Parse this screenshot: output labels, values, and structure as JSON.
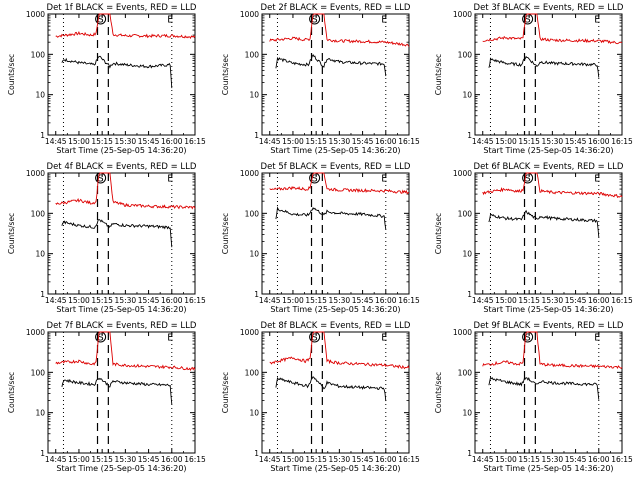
{
  "figure": {
    "xlabel": "Start Time (25-Sep-05 14:36:20)",
    "ylabel": "Counts/sec",
    "colors": {
      "events": "#000000",
      "lld": "#dd0000",
      "axis": "#000000"
    }
  },
  "chart_data": [
    {
      "type": "line",
      "title": "Det 1f BLACK = Events, RED = LLD",
      "xlabel": "Start Time (25-Sep-05 14:36:20)",
      "ylabel": "Counts/sec",
      "xlim": [
        "14:40",
        "16:15"
      ],
      "ylim": [
        1,
        1000
      ],
      "yscale": "log",
      "x_ticks": [
        "14:45",
        "15:00",
        "15:15",
        "15:30",
        "15:45",
        "16:00",
        "16:15"
      ],
      "y_ticks": [
        "1",
        "10",
        "100",
        "1000"
      ],
      "dotted_x": [
        "14:50",
        "16:00"
      ],
      "dashed_x": [
        "15:12",
        "15:19"
      ],
      "markers": [
        {
          "label": "S",
          "x": "15:14"
        },
        {
          "label": "E",
          "x": "15:59"
        }
      ],
      "series": [
        {
          "color": "red",
          "x": [
            "14:45",
            "15:00",
            "15:08",
            "15:11",
            "15:13",
            "15:20",
            "15:22",
            "15:30",
            "15:45",
            "16:00",
            "16:15"
          ],
          "y": [
            280,
            330,
            300,
            320,
            1000,
            1000,
            310,
            290,
            285,
            290,
            270
          ]
        },
        {
          "color": "black",
          "x": [
            "14:49",
            "14:50",
            "15:00",
            "15:10",
            "15:13",
            "15:20",
            "15:22",
            "15:30",
            "15:45",
            "15:59",
            "16:00"
          ],
          "y": [
            60,
            75,
            62,
            55,
            90,
            50,
            60,
            55,
            50,
            55,
            15
          ]
        }
      ]
    },
    {
      "type": "line",
      "title": "Det 2f BLACK = Events, RED = LLD",
      "xlabel": "Start Time (25-Sep-05 14:36:20)",
      "ylabel": "Counts/sec",
      "xlim": [
        "14:40",
        "16:15"
      ],
      "ylim": [
        1,
        1000
      ],
      "yscale": "log",
      "x_ticks": [
        "14:45",
        "15:00",
        "15:15",
        "15:30",
        "15:45",
        "16:00",
        "16:15"
      ],
      "y_ticks": [
        "1",
        "10",
        "100",
        "1000"
      ],
      "dotted_x": [
        "14:50",
        "16:00"
      ],
      "dashed_x": [
        "15:12",
        "15:19"
      ],
      "markers": [
        {
          "label": "S",
          "x": "15:14"
        },
        {
          "label": "E",
          "x": "15:59"
        }
      ],
      "series": [
        {
          "color": "red",
          "x": [
            "14:45",
            "15:00",
            "15:08",
            "15:11",
            "15:13",
            "15:20",
            "15:22",
            "15:30",
            "15:45",
            "16:00",
            "16:15"
          ],
          "y": [
            220,
            250,
            230,
            240,
            1000,
            1000,
            230,
            215,
            210,
            200,
            170
          ]
        },
        {
          "color": "black",
          "x": [
            "14:49",
            "14:50",
            "15:00",
            "15:10",
            "15:13",
            "15:20",
            "15:22",
            "15:30",
            "15:45",
            "15:59",
            "16:00"
          ],
          "y": [
            45,
            80,
            60,
            55,
            95,
            50,
            80,
            65,
            60,
            58,
            30
          ]
        }
      ]
    },
    {
      "type": "line",
      "title": "Det 3f BLACK = Events, RED = LLD",
      "xlabel": "Start Time (25-Sep-05 14:36:20)",
      "ylabel": "Counts/sec",
      "xlim": [
        "14:40",
        "16:15"
      ],
      "ylim": [
        1,
        1000
      ],
      "yscale": "log",
      "x_ticks": [
        "14:45",
        "15:00",
        "15:15",
        "15:30",
        "15:45",
        "16:00",
        "16:15"
      ],
      "y_ticks": [
        "1",
        "10",
        "100",
        "1000"
      ],
      "dotted_x": [
        "14:50",
        "16:00"
      ],
      "dashed_x": [
        "15:12",
        "15:19"
      ],
      "markers": [
        {
          "label": "S",
          "x": "15:14"
        },
        {
          "label": "E",
          "x": "15:59"
        }
      ],
      "series": [
        {
          "color": "red",
          "x": [
            "14:45",
            "15:00",
            "15:08",
            "15:11",
            "15:13",
            "15:20",
            "15:22",
            "15:30",
            "15:45",
            "16:00",
            "16:15"
          ],
          "y": [
            220,
            260,
            240,
            250,
            1000,
            1000,
            240,
            225,
            220,
            215,
            190
          ]
        },
        {
          "color": "black",
          "x": [
            "14:49",
            "14:50",
            "15:00",
            "15:10",
            "15:13",
            "15:20",
            "15:22",
            "15:30",
            "15:45",
            "15:59",
            "16:00"
          ],
          "y": [
            45,
            75,
            60,
            55,
            90,
            50,
            65,
            60,
            58,
            55,
            25
          ]
        }
      ]
    },
    {
      "type": "line",
      "title": "Det 4f BLACK = Events, RED = LLD",
      "xlabel": "Start Time (25-Sep-05 14:36:20)",
      "ylabel": "Counts/sec",
      "xlim": [
        "14:40",
        "16:15"
      ],
      "ylim": [
        1,
        1000
      ],
      "yscale": "log",
      "x_ticks": [
        "14:45",
        "15:00",
        "15:15",
        "15:30",
        "15:45",
        "16:00",
        "16:15"
      ],
      "y_ticks": [
        "1",
        "10",
        "100",
        "1000"
      ],
      "dotted_x": [
        "14:50",
        "16:00"
      ],
      "dashed_x": [
        "15:12",
        "15:19"
      ],
      "markers": [
        {
          "label": "S",
          "x": "15:14"
        },
        {
          "label": "E",
          "x": "15:59"
        }
      ],
      "series": [
        {
          "color": "red",
          "x": [
            "14:45",
            "15:00",
            "15:08",
            "15:11",
            "15:13",
            "15:20",
            "15:22",
            "15:30",
            "15:45",
            "16:00",
            "16:15"
          ],
          "y": [
            170,
            210,
            180,
            190,
            1000,
            1000,
            190,
            160,
            150,
            145,
            140
          ]
        },
        {
          "color": "black",
          "x": [
            "14:49",
            "14:50",
            "15:00",
            "15:10",
            "15:13",
            "15:20",
            "15:22",
            "15:30",
            "15:45",
            "15:59",
            "16:00"
          ],
          "y": [
            50,
            60,
            50,
            45,
            70,
            45,
            55,
            50,
            48,
            45,
            15
          ]
        }
      ]
    },
    {
      "type": "line",
      "title": "Det 5f BLACK = Events, RED = LLD",
      "xlabel": "Start Time (25-Sep-05 14:36:20)",
      "ylabel": "Counts/sec",
      "xlim": [
        "14:40",
        "16:15"
      ],
      "ylim": [
        1,
        1000
      ],
      "yscale": "log",
      "x_ticks": [
        "14:45",
        "15:00",
        "15:15",
        "15:30",
        "15:45",
        "16:00",
        "16:15"
      ],
      "y_ticks": [
        "1",
        "10",
        "100",
        "1000"
      ],
      "dotted_x": [
        "14:50",
        "16:00"
      ],
      "dashed_x": [
        "15:12",
        "15:19"
      ],
      "markers": [
        {
          "label": "S",
          "x": "15:14"
        },
        {
          "label": "E",
          "x": "15:59"
        }
      ],
      "series": [
        {
          "color": "red",
          "x": [
            "14:45",
            "15:00",
            "15:08",
            "15:11",
            "15:13",
            "15:20",
            "15:22",
            "15:30",
            "15:45",
            "16:00",
            "16:15"
          ],
          "y": [
            380,
            430,
            400,
            420,
            1000,
            1000,
            400,
            380,
            370,
            360,
            330
          ]
        },
        {
          "color": "black",
          "x": [
            "14:49",
            "14:50",
            "15:00",
            "15:10",
            "15:13",
            "15:20",
            "15:22",
            "15:30",
            "15:45",
            "15:59",
            "16:00"
          ],
          "y": [
            70,
            130,
            95,
            90,
            140,
            90,
            110,
            100,
            95,
            85,
            40
          ]
        }
      ]
    },
    {
      "type": "line",
      "title": "Det 6f BLACK = Events, RED = LLD",
      "xlabel": "Start Time (25-Sep-05 14:36:20)",
      "ylabel": "Counts/sec",
      "xlim": [
        "14:40",
        "16:15"
      ],
      "ylim": [
        1,
        1000
      ],
      "yscale": "log",
      "x_ticks": [
        "14:45",
        "15:00",
        "15:15",
        "15:30",
        "15:45",
        "16:00",
        "16:15"
      ],
      "y_ticks": [
        "1",
        "10",
        "100",
        "1000"
      ],
      "dotted_x": [
        "14:50",
        "16:00"
      ],
      "dashed_x": [
        "15:12",
        "15:19"
      ],
      "markers": [
        {
          "label": "S",
          "x": "15:14"
        },
        {
          "label": "E",
          "x": "15:59"
        }
      ],
      "series": [
        {
          "color": "red",
          "x": [
            "14:45",
            "15:00",
            "15:08",
            "15:11",
            "15:13",
            "15:20",
            "15:22",
            "15:30",
            "15:45",
            "16:00",
            "16:15"
          ],
          "y": [
            320,
            400,
            350,
            380,
            1000,
            1000,
            360,
            330,
            320,
            310,
            260
          ]
        },
        {
          "color": "black",
          "x": [
            "14:49",
            "14:50",
            "15:00",
            "15:10",
            "15:13",
            "15:20",
            "15:22",
            "15:30",
            "15:45",
            "15:59",
            "16:00"
          ],
          "y": [
            60,
            90,
            75,
            70,
            110,
            70,
            85,
            75,
            70,
            65,
            25
          ]
        }
      ]
    },
    {
      "type": "line",
      "title": "Det 7f BLACK = Events, RED = LLD",
      "xlabel": "Start Time (25-Sep-05 14:36:20)",
      "ylabel": "Counts/sec",
      "xlim": [
        "14:40",
        "16:15"
      ],
      "ylim": [
        1,
        1000
      ],
      "yscale": "log",
      "x_ticks": [
        "14:45",
        "15:00",
        "15:15",
        "15:30",
        "15:45",
        "16:00",
        "16:15"
      ],
      "y_ticks": [
        "1",
        "10",
        "100",
        "1000"
      ],
      "dotted_x": [
        "14:50",
        "16:00"
      ],
      "dashed_x": [
        "15:12",
        "15:19"
      ],
      "markers": [
        {
          "label": "S",
          "x": "15:14"
        },
        {
          "label": "E",
          "x": "15:59"
        }
      ],
      "series": [
        {
          "color": "red",
          "x": [
            "14:45",
            "15:00",
            "15:08",
            "15:11",
            "15:13",
            "15:20",
            "15:22",
            "15:30",
            "15:45",
            "16:00",
            "16:15"
          ],
          "y": [
            170,
            190,
            160,
            170,
            1000,
            1000,
            160,
            150,
            140,
            135,
            120
          ]
        },
        {
          "color": "black",
          "x": [
            "14:49",
            "14:50",
            "15:00",
            "15:10",
            "15:13",
            "15:20",
            "15:22",
            "15:30",
            "15:45",
            "15:59",
            "16:00"
          ],
          "y": [
            45,
            65,
            55,
            50,
            75,
            45,
            60,
            55,
            50,
            48,
            15
          ]
        }
      ]
    },
    {
      "type": "line",
      "title": "Det 8f BLACK = Events, RED = LLD",
      "xlabel": "Start Time (25-Sep-05 14:36:20)",
      "ylabel": "Counts/sec",
      "xlim": [
        "14:40",
        "16:15"
      ],
      "ylim": [
        1,
        1000
      ],
      "yscale": "log",
      "x_ticks": [
        "14:45",
        "15:00",
        "15:15",
        "15:30",
        "15:45",
        "16:00",
        "16:15"
      ],
      "y_ticks": [
        "1",
        "10",
        "100",
        "1000"
      ],
      "dotted_x": [
        "14:50",
        "16:00"
      ],
      "dashed_x": [
        "15:12",
        "15:19"
      ],
      "markers": [
        {
          "label": "S",
          "x": "15:14"
        },
        {
          "label": "E",
          "x": "15:59"
        }
      ],
      "series": [
        {
          "color": "red",
          "x": [
            "14:45",
            "15:00",
            "15:08",
            "15:11",
            "15:13",
            "15:20",
            "15:22",
            "15:30",
            "15:45",
            "16:00",
            "16:15"
          ],
          "y": [
            170,
            230,
            190,
            210,
            1000,
            1000,
            190,
            170,
            160,
            150,
            130
          ]
        },
        {
          "color": "black",
          "x": [
            "14:49",
            "14:50",
            "15:00",
            "15:10",
            "15:13",
            "15:20",
            "15:22",
            "15:30",
            "15:45",
            "15:59",
            "16:00"
          ],
          "y": [
            40,
            70,
            55,
            45,
            80,
            40,
            55,
            45,
            42,
            40,
            20
          ]
        }
      ]
    },
    {
      "type": "line",
      "title": "Det 9f BLACK = Events, RED = LLD",
      "xlabel": "Start Time (25-Sep-05 14:36:20)",
      "ylabel": "Counts/sec",
      "xlim": [
        "14:40",
        "16:15"
      ],
      "ylim": [
        1,
        1000
      ],
      "yscale": "log",
      "x_ticks": [
        "14:45",
        "15:00",
        "15:15",
        "15:30",
        "15:45",
        "16:00",
        "16:15"
      ],
      "y_ticks": [
        "1",
        "10",
        "100",
        "1000"
      ],
      "dotted_x": [
        "14:50",
        "16:00"
      ],
      "dashed_x": [
        "15:12",
        "15:19"
      ],
      "markers": [
        {
          "label": "S",
          "x": "15:14"
        },
        {
          "label": "E",
          "x": "15:59"
        }
      ],
      "series": [
        {
          "color": "red",
          "x": [
            "14:45",
            "15:00",
            "15:08",
            "15:11",
            "15:13",
            "15:20",
            "15:22",
            "15:30",
            "15:45",
            "16:00",
            "16:15"
          ],
          "y": [
            150,
            180,
            160,
            170,
            1000,
            1000,
            160,
            150,
            145,
            140,
            135
          ]
        },
        {
          "color": "black",
          "x": [
            "14:49",
            "14:50",
            "15:00",
            "15:10",
            "15:13",
            "15:20",
            "15:22",
            "15:30",
            "15:45",
            "15:59",
            "16:00"
          ],
          "y": [
            50,
            70,
            58,
            50,
            75,
            48,
            60,
            55,
            52,
            50,
            20
          ]
        }
      ]
    }
  ]
}
